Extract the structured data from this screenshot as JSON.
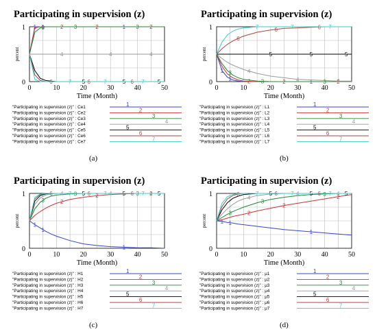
{
  "chart_data": [
    {
      "type": "line",
      "title": "Participating in supervision (z)",
      "xlabel": "Time (Month)",
      "ylabel": "percent",
      "xlim": [
        0,
        50
      ],
      "ylim": [
        0,
        1
      ],
      "xticks": [
        "0",
        "10",
        "20",
        "30",
        "40",
        "50"
      ],
      "yticks": [
        "0",
        "0.5",
        "1"
      ],
      "grid": true,
      "legend_position": "bottom",
      "caption": "(a)",
      "x": [
        0,
        2,
        4,
        6,
        8,
        10,
        15,
        20,
        25,
        30,
        35,
        40,
        45,
        50
      ],
      "series": [
        {
          "name": "\"Participating in supervision (z)\" : Ce1",
          "marker": "1",
          "color": "#3344cc",
          "values": [
            0.5,
            1,
            1,
            1,
            1,
            1,
            1,
            1,
            1,
            1,
            1,
            1,
            1,
            1
          ]
        },
        {
          "name": "\"Participating in supervision (z)\" : Ce2",
          "marker": "2",
          "color": "#cc3333",
          "values": [
            0.5,
            0.98,
            1,
            1,
            1,
            1,
            1,
            1,
            1,
            1,
            1,
            1,
            1,
            1
          ]
        },
        {
          "name": "\"Participating in supervision (z)\" : Ce3",
          "marker": "3",
          "color": "#228833",
          "values": [
            0.5,
            0.9,
            0.98,
            1,
            1,
            1,
            1,
            1,
            1,
            1,
            1,
            1,
            1,
            1
          ]
        },
        {
          "name": "\"Participating in supervision (z)\" : Ce4",
          "marker": "4",
          "color": "#999999",
          "values": [
            0.5,
            0.5,
            0.5,
            0.5,
            0.5,
            0.5,
            0.5,
            0.5,
            0.5,
            0.5,
            0.5,
            0.5,
            0.5,
            0.5
          ]
        },
        {
          "name": "\"Participating in supervision (z)\" : Ce5",
          "marker": "5",
          "color": "#000000",
          "values": [
            0.5,
            0.2,
            0.06,
            0.02,
            0.01,
            0,
            0,
            0,
            0,
            0,
            0,
            0,
            0,
            0
          ]
        },
        {
          "name": "\"Participating in supervision (z)\" : Ce6",
          "marker": "6",
          "color": "#aa4444",
          "values": [
            0.5,
            0.12,
            0.02,
            0,
            0,
            0,
            0,
            0,
            0,
            0,
            0,
            0,
            0,
            0
          ]
        },
        {
          "name": "\"Participating in supervision (z)\" : Ce7",
          "marker": "7",
          "color": "#33cccc",
          "values": [
            0.5,
            0.04,
            0,
            0,
            0,
            0,
            0,
            0,
            0,
            0,
            0,
            0,
            0,
            0
          ]
        }
      ]
    },
    {
      "type": "line",
      "title": "Participating in supervision (z)",
      "xlabel": "Time (Month)",
      "ylabel": "percent",
      "xlim": [
        0,
        50
      ],
      "ylim": [
        0,
        1
      ],
      "xticks": [
        "0",
        "10",
        "20",
        "30",
        "40",
        "50"
      ],
      "yticks": [
        "0",
        "0.5",
        "1"
      ],
      "grid": true,
      "legend_position": "bottom",
      "caption": "(b)",
      "x": [
        0,
        2,
        4,
        6,
        8,
        10,
        15,
        20,
        25,
        30,
        35,
        40,
        45,
        50
      ],
      "series": [
        {
          "name": "\"Participating in supervision (z)\" : L1",
          "marker": "1",
          "color": "#3344cc",
          "values": [
            0.5,
            0.2,
            0.08,
            0.03,
            0.01,
            0,
            0,
            0,
            0,
            0,
            0,
            0,
            0,
            0
          ]
        },
        {
          "name": "\"Participating in supervision (z)\" : L2",
          "marker": "2",
          "color": "#cc3333",
          "values": [
            0.5,
            0.28,
            0.14,
            0.07,
            0.03,
            0.01,
            0,
            0,
            0,
            0,
            0,
            0,
            0,
            0
          ]
        },
        {
          "name": "\"Participating in supervision (z)\" : L3",
          "marker": "3",
          "color": "#228833",
          "values": [
            0.5,
            0.33,
            0.2,
            0.12,
            0.07,
            0.04,
            0.01,
            0,
            0,
            0,
            0,
            0,
            0,
            0
          ]
        },
        {
          "name": "\"Participating in supervision (z)\" : L4",
          "marker": "4",
          "color": "#999999",
          "values": [
            0.5,
            0.42,
            0.35,
            0.3,
            0.26,
            0.22,
            0.15,
            0.1,
            0.07,
            0.04,
            0.03,
            0.02,
            0.01,
            0.01
          ]
        },
        {
          "name": "\"Participating in supervision (z)\" : L5",
          "marker": "5",
          "color": "#000000",
          "values": [
            0.5,
            0.5,
            0.5,
            0.5,
            0.5,
            0.5,
            0.5,
            0.5,
            0.5,
            0.5,
            0.5,
            0.5,
            0.5,
            0.5
          ]
        },
        {
          "name": "\"Participating in supervision (z)\" : L6",
          "marker": "6",
          "color": "#aa4444",
          "values": [
            0.5,
            0.6,
            0.68,
            0.74,
            0.79,
            0.83,
            0.9,
            0.94,
            0.97,
            0.98,
            0.99,
            1,
            1,
            1
          ]
        },
        {
          "name": "\"Participating in supervision (z)\" : L7",
          "marker": "7",
          "color": "#33cccc",
          "values": [
            0.5,
            0.72,
            0.85,
            0.92,
            0.96,
            0.98,
            1,
            1,
            1,
            1,
            1,
            1,
            1,
            1
          ]
        }
      ]
    },
    {
      "type": "line",
      "title": "Participating in supervision (z)",
      "xlabel": "Time (Month)",
      "ylabel": "percent",
      "xlim": [
        0,
        50
      ],
      "ylim": [
        0,
        1
      ],
      "xticks": [
        "0",
        "10",
        "20",
        "30",
        "40",
        "50"
      ],
      "yticks": [
        "0",
        "0.5",
        "1"
      ],
      "grid": true,
      "legend_position": "bottom",
      "caption": "(c)",
      "x": [
        0,
        2,
        4,
        6,
        8,
        10,
        15,
        20,
        25,
        30,
        35,
        40,
        45,
        50
      ],
      "series": [
        {
          "name": "\"Participating in supervision (z)\" : H1",
          "marker": "1",
          "color": "#3344cc",
          "values": [
            0.5,
            0.43,
            0.37,
            0.31,
            0.26,
            0.22,
            0.14,
            0.08,
            0.05,
            0.03,
            0.02,
            0.01,
            0.01,
            0
          ]
        },
        {
          "name": "\"Participating in supervision (z)\" : H2",
          "marker": "2",
          "color": "#cc3333",
          "values": [
            0.5,
            0.6,
            0.67,
            0.73,
            0.78,
            0.82,
            0.89,
            0.93,
            0.96,
            0.98,
            0.99,
            1,
            1,
            1
          ]
        },
        {
          "name": "\"Participating in supervision (z)\" : H3",
          "marker": "3",
          "color": "#228833",
          "values": [
            0.5,
            0.72,
            0.84,
            0.91,
            0.95,
            0.97,
            0.99,
            1,
            1,
            1,
            1,
            1,
            1,
            1
          ]
        },
        {
          "name": "\"Participating in supervision (z)\" : H4",
          "marker": "4",
          "color": "#999999",
          "values": [
            0.5,
            0.8,
            0.92,
            0.97,
            0.99,
            1,
            1,
            1,
            1,
            1,
            1,
            1,
            1,
            1
          ]
        },
        {
          "name": "\"Participating in supervision (z)\" : H5",
          "marker": "5",
          "color": "#000000",
          "values": [
            0.5,
            0.86,
            0.96,
            0.99,
            1,
            1,
            1,
            1,
            1,
            1,
            1,
            1,
            1,
            1
          ]
        },
        {
          "name": "\"Participating in supervision (z)\" : H6",
          "marker": "6",
          "color": "#aa4444",
          "values": [
            0.5,
            0.9,
            0.98,
            1,
            1,
            1,
            1,
            1,
            1,
            1,
            1,
            1,
            1,
            1
          ]
        },
        {
          "name": "\"Participating in supervision (z)\" : H7",
          "marker": "7",
          "color": "#33cccc",
          "values": [
            0.5,
            0.93,
            0.99,
            1,
            1,
            1,
            1,
            1,
            1,
            1,
            1,
            1,
            1,
            1
          ]
        }
      ]
    },
    {
      "type": "line",
      "title": "Participating in supervision (z)",
      "xlabel": "Time (Month)",
      "ylabel": "percent",
      "xlim": [
        0,
        50
      ],
      "ylim": [
        0,
        1
      ],
      "xticks": [
        "0",
        "10",
        "20",
        "30",
        "40",
        "50"
      ],
      "yticks": [
        "0",
        "0.5",
        "1"
      ],
      "grid": true,
      "legend_position": "bottom",
      "caption": "(d)",
      "x": [
        0,
        2,
        4,
        6,
        8,
        10,
        15,
        20,
        25,
        30,
        35,
        40,
        45,
        50
      ],
      "series": [
        {
          "name": "\"Participating in supervision (z)\" : μ1",
          "marker": "1",
          "color": "#3344cc",
          "values": [
            0.5,
            0.49,
            0.47,
            0.46,
            0.44,
            0.43,
            0.4,
            0.37,
            0.34,
            0.32,
            0.3,
            0.28,
            0.26,
            0.24
          ]
        },
        {
          "name": "\"Participating in supervision (z)\" : μ2",
          "marker": "2",
          "color": "#cc3333",
          "values": [
            0.5,
            0.52,
            0.55,
            0.58,
            0.6,
            0.62,
            0.68,
            0.73,
            0.78,
            0.82,
            0.86,
            0.9,
            0.94,
            0.98
          ]
        },
        {
          "name": "\"Participating in supervision (z)\" : μ3",
          "marker": "3",
          "color": "#228833",
          "values": [
            0.5,
            0.56,
            0.62,
            0.67,
            0.71,
            0.75,
            0.83,
            0.89,
            0.93,
            0.96,
            0.98,
            0.99,
            1,
            1
          ]
        },
        {
          "name": "\"Participating in supervision (z)\" : μ4",
          "marker": "4",
          "color": "#999999",
          "values": [
            0.5,
            0.62,
            0.72,
            0.8,
            0.86,
            0.9,
            0.96,
            0.99,
            1,
            1,
            1,
            1,
            1,
            1
          ]
        },
        {
          "name": "\"Participating in supervision (z)\" : μ5",
          "marker": "5",
          "color": "#000000",
          "values": [
            0.5,
            0.7,
            0.83,
            0.91,
            0.95,
            0.98,
            1,
            1,
            1,
            1,
            1,
            1,
            1,
            1
          ]
        },
        {
          "name": "\"Participating in supervision (z)\" : μ6",
          "marker": "6",
          "color": "#aa4444",
          "values": [
            0.5,
            0.76,
            0.9,
            0.96,
            0.99,
            1,
            1,
            1,
            1,
            1,
            1,
            1,
            1,
            1
          ]
        },
        {
          "name": "\"Participating in supervision (z)\" : μ7",
          "marker": "7",
          "color": "#33cccc",
          "values": [
            0.5,
            0.82,
            0.94,
            0.98,
            1,
            1,
            1,
            1,
            1,
            1,
            1,
            1,
            1,
            1
          ]
        }
      ]
    }
  ]
}
